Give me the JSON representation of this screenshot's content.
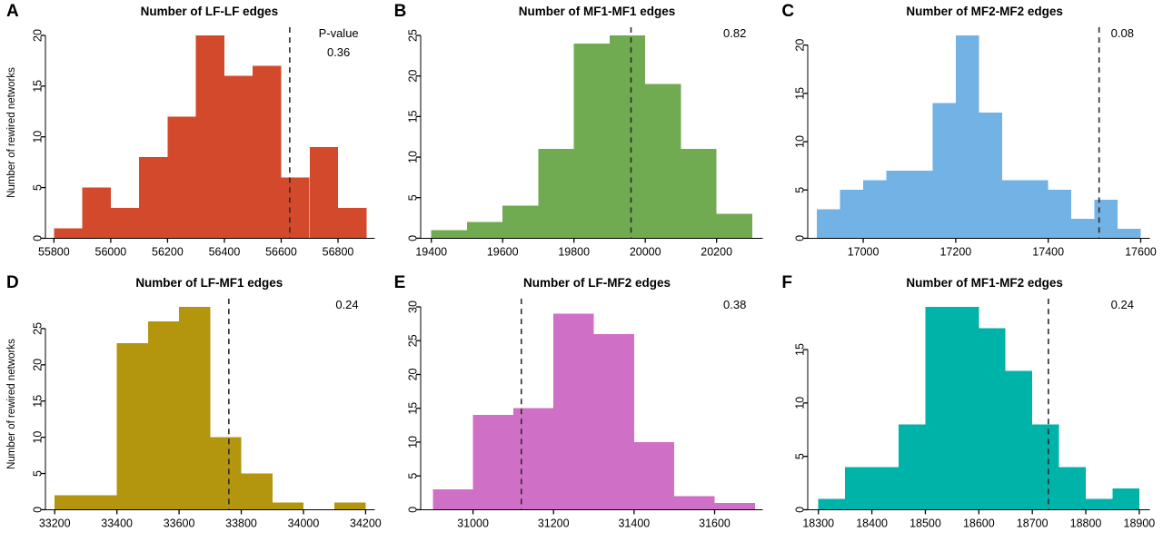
{
  "figure": {
    "background": "#ffffff",
    "axis_color": "#000000",
    "dashed_line_color": "#2b2b2b"
  },
  "chart_data": [
    {
      "panel_label": "A",
      "type": "bar",
      "chart_kind": "histogram",
      "title": "Number of LF-LF edges",
      "ylabel": "Number of rewired networks",
      "p_value_label": "P-value",
      "p_value": "0.36",
      "color": "#d2492b",
      "bin_start": 55800,
      "bin_width": 100,
      "counts": [
        1,
        5,
        3,
        8,
        12,
        20,
        16,
        17,
        6,
        9,
        3
      ],
      "x_ticks": [
        55800,
        56000,
        56200,
        56400,
        56600,
        56800
      ],
      "xlim": [
        55770,
        56930
      ],
      "y_ticks": [
        0,
        5,
        10,
        15,
        20
      ],
      "ylim": [
        0,
        20
      ],
      "observed_x": 56630,
      "legend": "none",
      "grid": false
    },
    {
      "panel_label": "B",
      "type": "bar",
      "chart_kind": "histogram",
      "title": "Number of MF1-MF1 edges",
      "ylabel": "",
      "p_value_label": "",
      "p_value": "0.82",
      "color": "#70ab51",
      "bin_start": 19400,
      "bin_width": 100,
      "counts": [
        1,
        2,
        4,
        11,
        24,
        25,
        19,
        11,
        3
      ],
      "x_ticks": [
        19400,
        19600,
        19800,
        20000,
        20200
      ],
      "xlim": [
        19370,
        20330
      ],
      "y_ticks": [
        0,
        5,
        10,
        15,
        20,
        25
      ],
      "ylim": [
        0,
        25
      ],
      "observed_x": 19960,
      "legend": "none",
      "grid": false
    },
    {
      "panel_label": "C",
      "type": "bar",
      "chart_kind": "histogram",
      "title": "Number of MF2-MF2 edges",
      "ylabel": "",
      "p_value_label": "",
      "p_value": "0.08",
      "color": "#72b2e4",
      "bin_start": 16900,
      "bin_width": 50,
      "counts": [
        3,
        5,
        6,
        7,
        7,
        14,
        21,
        13,
        6,
        6,
        5,
        2,
        4,
        1
      ],
      "x_ticks": [
        17000,
        17200,
        17400,
        17600
      ],
      "xlim": [
        16880,
        17620
      ],
      "y_ticks": [
        0,
        5,
        10,
        15,
        20
      ],
      "ylim": [
        0,
        21
      ],
      "observed_x": 17510,
      "legend": "none",
      "grid": false
    },
    {
      "panel_label": "D",
      "type": "bar",
      "chart_kind": "histogram",
      "title": "Number of LF-MF1 edges",
      "ylabel": "Number of rewired networks",
      "p_value_label": "",
      "p_value": "0.24",
      "color": "#b4950e",
      "bin_start": 33200,
      "bin_width": 100,
      "counts": [
        2,
        2,
        23,
        26,
        28,
        10,
        5,
        1,
        0,
        1
      ],
      "x_ticks": [
        33200,
        33400,
        33600,
        33800,
        34000,
        34200
      ],
      "xlim": [
        33170,
        34230
      ],
      "y_ticks": [
        0,
        5,
        10,
        15,
        20,
        25
      ],
      "ylim": [
        0,
        28
      ],
      "observed_x": 33760,
      "legend": "none",
      "grid": false
    },
    {
      "panel_label": "E",
      "type": "bar",
      "chart_kind": "histogram",
      "title": "Number of LF-MF2 edges",
      "ylabel": "",
      "p_value_label": "",
      "p_value": "0.38",
      "color": "#cf70c6",
      "bin_start": 30900,
      "bin_width": 100,
      "counts": [
        3,
        14,
        15,
        29,
        26,
        10,
        2,
        1
      ],
      "x_ticks": [
        31000,
        31200,
        31400,
        31600
      ],
      "xlim": [
        30870,
        31720
      ],
      "y_ticks": [
        0,
        5,
        10,
        15,
        20,
        25,
        30
      ],
      "ylim": [
        0,
        30
      ],
      "observed_x": 31120,
      "legend": "none",
      "grid": false
    },
    {
      "panel_label": "F",
      "type": "bar",
      "chart_kind": "histogram",
      "title": "Number of MF1-MF2 edges",
      "ylabel": "",
      "p_value_label": "",
      "p_value": "0.24",
      "color": "#00b3a9",
      "bin_start": 18300,
      "bin_width": 50,
      "counts": [
        1,
        4,
        4,
        8,
        19,
        19,
        17,
        13,
        8,
        4,
        1,
        2
      ],
      "x_ticks": [
        18300,
        18400,
        18500,
        18600,
        18700,
        18800,
        18900
      ],
      "xlim": [
        18280,
        18920
      ],
      "y_ticks": [
        0,
        5,
        10,
        15
      ],
      "ylim": [
        0,
        19
      ],
      "observed_x": 18730,
      "legend": "none",
      "grid": false
    }
  ]
}
